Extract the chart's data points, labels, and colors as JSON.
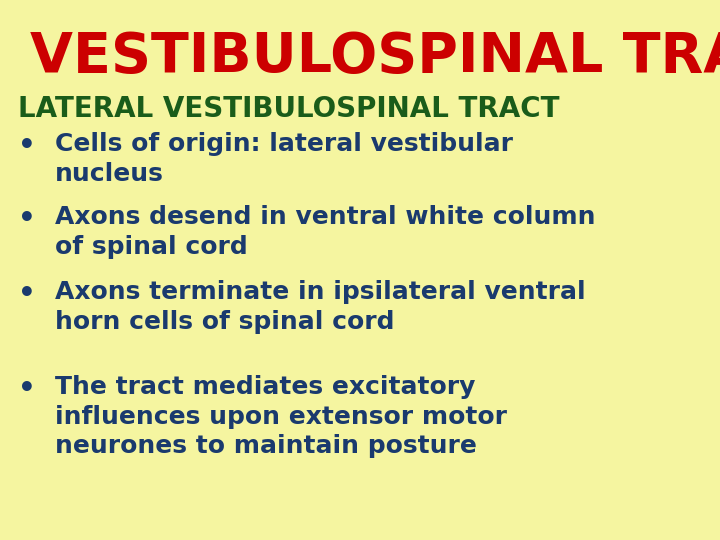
{
  "bg_color": "#f5f5a0",
  "title": "VESTIBULOSPINAL TRACTS",
  "title_color": "#cc0000",
  "title_fontsize": 40,
  "subtitle": "LATERAL VESTIBULOSPINAL TRACT",
  "subtitle_color": "#1a5c1a",
  "subtitle_fontsize": 20,
  "bullet_color": "#1a3a6e",
  "bullet_fontsize": 18,
  "bullets": [
    "Cells of origin: lateral vestibular\nnucleus",
    "Axons desend in ventral white column\nof spinal cord",
    "Axons terminate in ipsilateral ventral\nhorn cells of spinal cord",
    "The tract mediates excitatory\ninfluences upon extensor motor\nneurones to maintain posture"
  ]
}
